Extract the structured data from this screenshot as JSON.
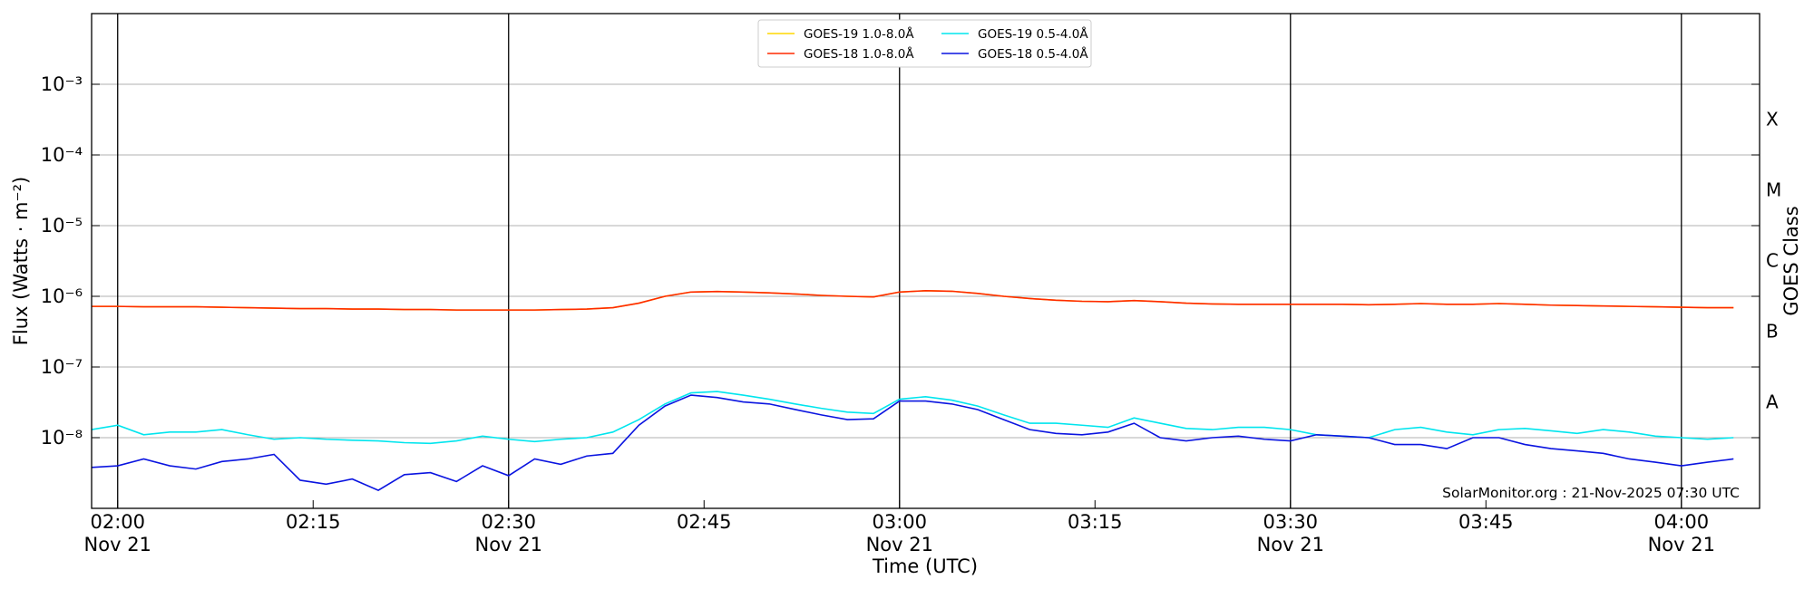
{
  "chart_data": {
    "type": "line",
    "xlabel": "Time (UTC)",
    "ylabel": "Flux (Watts · m⁻²)",
    "y2label": "GOES Class",
    "annotation": "SolarMonitor.org : 21-Nov-2025 07:30 UTC",
    "yscale": "log",
    "grid": true,
    "legend": "upper center",
    "xlim": [
      "01:58",
      "04:06"
    ],
    "ylim": [
      1e-09,
      0.01
    ],
    "y2lim": [
      1e-09,
      0.01
    ],
    "xticks": [
      {
        "value": "02:00",
        "label": "02:00\nNov 21"
      },
      "02:15",
      {
        "value": "02:30",
        "label": "02:30\nNov 21"
      },
      "02:45",
      {
        "value": "03:00",
        "label": "03:00\nNov 21"
      },
      "03:15",
      {
        "value": "03:30",
        "label": "03:30\nNov 21"
      },
      "03:45",
      {
        "value": "04:00",
        "label": "04:00\nNov 21"
      }
    ],
    "yticks": [
      {
        "value": 1e-08,
        "label": "10⁻⁸"
      },
      {
        "value": 1e-07,
        "label": "10⁻⁷"
      },
      {
        "value": 1e-06,
        "label": "10⁻⁶"
      },
      {
        "value": 1e-05,
        "label": "10⁻⁵"
      },
      {
        "value": 0.0001,
        "label": "10⁻⁴"
      },
      {
        "value": 0.001,
        "label": "10⁻³"
      }
    ],
    "y2ticks": [
      {
        "value": 3.2e-08,
        "label": "A"
      },
      {
        "value": 3.2e-07,
        "label": "B"
      },
      {
        "value": 3.2e-06,
        "label": "C"
      },
      {
        "value": 3.2e-05,
        "label": "M"
      },
      {
        "value": 0.00032,
        "label": "X"
      }
    ],
    "x": [
      "01:58",
      "02:00",
      "02:02",
      "02:04",
      "02:06",
      "02:08",
      "02:10",
      "02:12",
      "02:14",
      "02:16",
      "02:18",
      "02:20",
      "02:22",
      "02:24",
      "02:26",
      "02:28",
      "02:30",
      "02:32",
      "02:34",
      "02:36",
      "02:38",
      "02:40",
      "02:42",
      "02:44",
      "02:46",
      "02:48",
      "02:50",
      "02:52",
      "02:54",
      "02:56",
      "02:58",
      "03:00",
      "03:02",
      "03:04",
      "03:06",
      "03:08",
      "03:10",
      "03:12",
      "03:14",
      "03:16",
      "03:18",
      "03:20",
      "03:22",
      "03:24",
      "03:26",
      "03:28",
      "03:30",
      "03:32",
      "03:34",
      "03:36",
      "03:38",
      "03:40",
      "03:42",
      "03:44",
      "03:46",
      "03:48",
      "03:50",
      "03:52",
      "03:54",
      "03:56",
      "03:58",
      "04:00",
      "04:02",
      "04:04"
    ],
    "series": [
      {
        "name": "GOES-19 1.0-8.0Å",
        "color": "#ffd700",
        "values": [
          7.2e-07,
          7.2e-07,
          7.1e-07,
          7.1e-07,
          7.1e-07,
          7e-07,
          6.9e-07,
          6.8e-07,
          6.7e-07,
          6.7e-07,
          6.6e-07,
          6.6e-07,
          6.5e-07,
          6.5e-07,
          6.4e-07,
          6.4e-07,
          6.4e-07,
          6.4e-07,
          6.5e-07,
          6.6e-07,
          6.9e-07,
          8e-07,
          1e-06,
          1.15e-06,
          1.17e-06,
          1.15e-06,
          1.12e-06,
          1.08e-06,
          1.03e-06,
          1e-06,
          9.8e-07,
          1.15e-06,
          1.2e-06,
          1.18e-06,
          1.1e-06,
          1e-06,
          9.3e-07,
          8.8e-07,
          8.5e-07,
          8.4e-07,
          8.7e-07,
          8.4e-07,
          8e-07,
          7.8e-07,
          7.7e-07,
          7.7e-07,
          7.7e-07,
          7.7e-07,
          7.7e-07,
          7.6e-07,
          7.7e-07,
          7.9e-07,
          7.7e-07,
          7.7e-07,
          7.9e-07,
          7.7e-07,
          7.5e-07,
          7.4e-07,
          7.3e-07,
          7.2e-07,
          7.1e-07,
          7e-07,
          6.9e-07,
          6.9e-07
        ]
      },
      {
        "name": "GOES-18 1.0-8.0Å",
        "color": "#ff2a00",
        "values": [
          7.2e-07,
          7.2e-07,
          7.1e-07,
          7.1e-07,
          7.1e-07,
          7e-07,
          6.9e-07,
          6.8e-07,
          6.7e-07,
          6.7e-07,
          6.6e-07,
          6.6e-07,
          6.5e-07,
          6.5e-07,
          6.4e-07,
          6.4e-07,
          6.4e-07,
          6.4e-07,
          6.5e-07,
          6.6e-07,
          6.9e-07,
          8e-07,
          1e-06,
          1.15e-06,
          1.17e-06,
          1.15e-06,
          1.12e-06,
          1.08e-06,
          1.03e-06,
          1e-06,
          9.8e-07,
          1.15e-06,
          1.2e-06,
          1.18e-06,
          1.1e-06,
          1e-06,
          9.3e-07,
          8.8e-07,
          8.5e-07,
          8.4e-07,
          8.7e-07,
          8.4e-07,
          8e-07,
          7.8e-07,
          7.7e-07,
          7.7e-07,
          7.7e-07,
          7.7e-07,
          7.7e-07,
          7.6e-07,
          7.7e-07,
          7.9e-07,
          7.7e-07,
          7.7e-07,
          7.9e-07,
          7.7e-07,
          7.5e-07,
          7.4e-07,
          7.3e-07,
          7.2e-07,
          7.1e-07,
          7e-07,
          6.9e-07,
          6.9e-07
        ]
      },
      {
        "name": "GOES-19 0.5-4.0Å",
        "color": "#00e5ee",
        "values": [
          1.3e-08,
          1.5e-08,
          1.1e-08,
          1.2e-08,
          1.2e-08,
          1.3e-08,
          1.1e-08,
          9.5e-09,
          1e-08,
          9.5e-09,
          9.2e-09,
          9e-09,
          8.5e-09,
          8.3e-09,
          9e-09,
          1.05e-08,
          9.5e-09,
          8.8e-09,
          9.5e-09,
          1e-08,
          1.2e-08,
          1.8e-08,
          3e-08,
          4.3e-08,
          4.5e-08,
          4e-08,
          3.5e-08,
          3e-08,
          2.6e-08,
          2.3e-08,
          2.2e-08,
          3.5e-08,
          3.8e-08,
          3.4e-08,
          2.8e-08,
          2.1e-08,
          1.6e-08,
          1.6e-08,
          1.5e-08,
          1.4e-08,
          1.9e-08,
          1.6e-08,
          1.35e-08,
          1.3e-08,
          1.4e-08,
          1.4e-08,
          1.3e-08,
          1.1e-08,
          1.05e-08,
          1e-08,
          1.3e-08,
          1.4e-08,
          1.2e-08,
          1.1e-08,
          1.3e-08,
          1.35e-08,
          1.25e-08,
          1.15e-08,
          1.3e-08,
          1.2e-08,
          1.05e-08,
          1e-08,
          9.5e-09,
          1e-08
        ]
      },
      {
        "name": "GOES-18 0.5-4.0Å",
        "color": "#0a14e0",
        "values": [
          3.8e-09,
          4e-09,
          5e-09,
          4e-09,
          3.6e-09,
          4.6e-09,
          5e-09,
          5.8e-09,
          2.5e-09,
          2.2e-09,
          2.6e-09,
          1.8e-09,
          3e-09,
          3.2e-09,
          2.4e-09,
          4e-09,
          2.9e-09,
          5e-09,
          4.2e-09,
          5.5e-09,
          6e-09,
          1.5e-08,
          2.8e-08,
          4e-08,
          3.7e-08,
          3.2e-08,
          3e-08,
          2.5e-08,
          2.1e-08,
          1.8e-08,
          1.85e-08,
          3.3e-08,
          3.3e-08,
          3e-08,
          2.5e-08,
          1.8e-08,
          1.3e-08,
          1.15e-08,
          1.1e-08,
          1.2e-08,
          1.6e-08,
          1e-08,
          9e-09,
          1e-08,
          1.05e-08,
          9.5e-09,
          9e-09,
          1.1e-08,
          1.05e-08,
          1e-08,
          8e-09,
          8e-09,
          7e-09,
          1e-08,
          1e-08,
          8e-09,
          7e-09,
          6.5e-09,
          6e-09,
          5e-09,
          4.5e-09,
          4e-09,
          4.5e-09,
          5e-09
        ]
      }
    ]
  }
}
